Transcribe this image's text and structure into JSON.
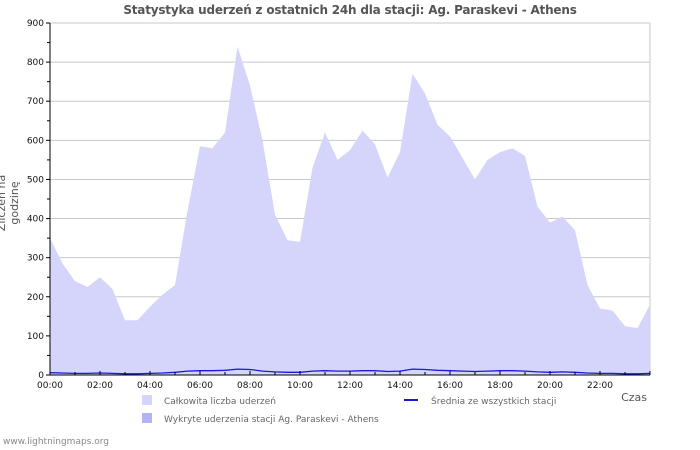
{
  "chart_data": {
    "type": "area",
    "title": "Statystyka uderzeń z ostatnich 24h dla stacji: Ag. Paraskevi - Athens",
    "xlabel": "Czas",
    "ylabel": "Zliczeń na godzinę",
    "ylim": [
      0,
      900
    ],
    "yticks": [
      0,
      100,
      200,
      300,
      400,
      500,
      600,
      700,
      800,
      900
    ],
    "xticks": [
      "00:00",
      "02:00",
      "04:00",
      "06:00",
      "08:00",
      "10:00",
      "12:00",
      "14:00",
      "16:00",
      "18:00",
      "20:00",
      "22:00"
    ],
    "grid": true,
    "x_hours": [
      0,
      0.5,
      1,
      1.5,
      2,
      2.5,
      3,
      3.5,
      4,
      4.5,
      5,
      5.5,
      6,
      6.5,
      7,
      7.5,
      8,
      8.5,
      9,
      9.5,
      10,
      10.5,
      11,
      11.5,
      12,
      12.5,
      13,
      13.5,
      14,
      14.5,
      15,
      15.5,
      16,
      16.5,
      17,
      17.5,
      18,
      18.5,
      19,
      19.5,
      20,
      20.5,
      21,
      21.5,
      22,
      22.5,
      23,
      23.5,
      24
    ],
    "series": [
      {
        "name": "Całkowita liczba uderzeń",
        "color": "#d5d5fc",
        "style": "area",
        "values": [
          350,
          285,
          240,
          225,
          250,
          220,
          140,
          140,
          175,
          205,
          230,
          420,
          585,
          580,
          620,
          840,
          740,
          600,
          410,
          345,
          340,
          530,
          620,
          550,
          575,
          625,
          590,
          505,
          570,
          770,
          720,
          640,
          610,
          555,
          500,
          550,
          570,
          580,
          560,
          430,
          390,
          405,
          370,
          230,
          170,
          165,
          125,
          120,
          180
        ]
      },
      {
        "name": "Wykryte uderzenia stacji Ag. Paraskevi - Athens",
        "color": "#b3b3f5",
        "style": "area",
        "values": [
          0,
          0,
          0,
          0,
          0,
          0,
          0,
          0,
          0,
          0,
          0,
          0,
          0,
          0,
          0,
          0,
          0,
          0,
          0,
          0,
          0,
          0,
          0,
          0,
          0,
          0,
          0,
          0,
          0,
          0,
          0,
          0,
          0,
          0,
          0,
          0,
          0,
          0,
          0,
          0,
          0,
          0,
          0,
          0,
          0,
          0,
          0,
          0,
          0
        ]
      },
      {
        "name": "Średnia ze wszystkich stacji",
        "color": "#1a1adb",
        "style": "line",
        "values": [
          6,
          5,
          4,
          4,
          5,
          4,
          3,
          3,
          4,
          5,
          7,
          10,
          11,
          11,
          12,
          15,
          14,
          10,
          8,
          7,
          7,
          10,
          11,
          10,
          10,
          11,
          11,
          9,
          10,
          15,
          14,
          12,
          11,
          10,
          9,
          10,
          11,
          11,
          10,
          8,
          7,
          8,
          7,
          5,
          4,
          4,
          3,
          3,
          4
        ]
      }
    ],
    "legend_position": "bottom"
  },
  "footer": "www.lightningmaps.org"
}
